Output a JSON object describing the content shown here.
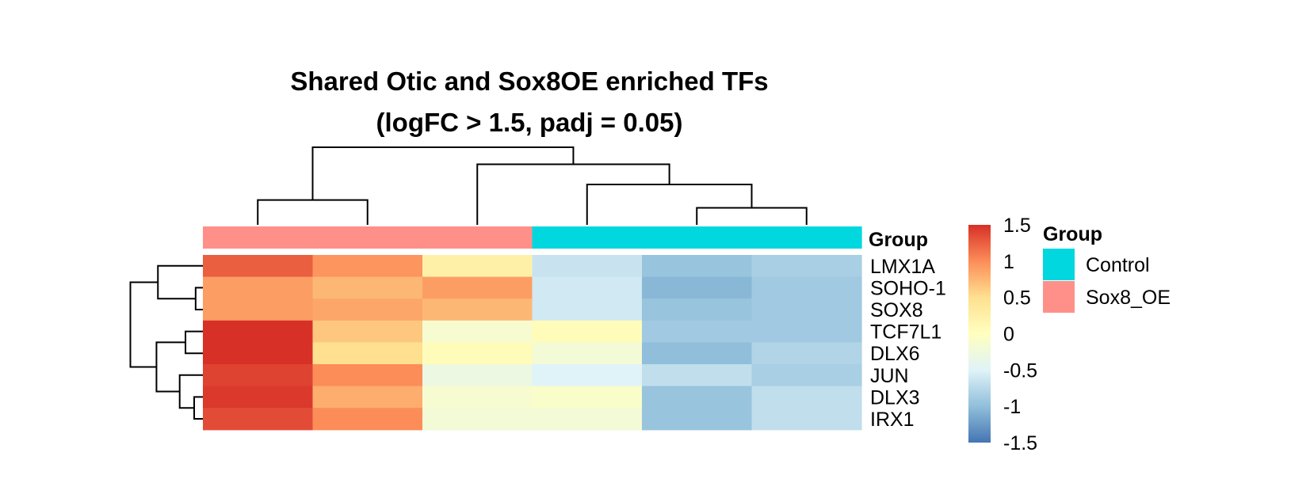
{
  "chart_data": {
    "type": "heatmap",
    "title": "Shared Otic and Sox8OE enriched TFs",
    "subtitle": "(logFC > 1.5, padj = 0.05)",
    "rows": [
      "LMX1A",
      "SOHO-1",
      "SOX8",
      "TCF7L1",
      "DLX6",
      "JUN",
      "DLX3",
      "IRX1"
    ],
    "column_groups": [
      "Sox8_OE",
      "Sox8_OE",
      "Sox8_OE",
      "Control",
      "Control",
      "Control"
    ],
    "values": [
      [
        1.25,
        0.95,
        0.25,
        -0.65,
        -0.95,
        -0.85
      ],
      [
        0.9,
        0.75,
        0.9,
        -0.6,
        -1.05,
        -0.9
      ],
      [
        0.9,
        0.85,
        0.75,
        -0.6,
        -0.95,
        -0.9
      ],
      [
        1.5,
        0.65,
        -0.15,
        0.05,
        -0.9,
        -0.9
      ],
      [
        1.5,
        0.5,
        0.05,
        -0.2,
        -1.0,
        -0.8
      ],
      [
        1.4,
        1.0,
        -0.3,
        -0.5,
        -0.7,
        -0.85
      ],
      [
        1.45,
        0.8,
        -0.15,
        -0.1,
        -0.95,
        -0.7
      ],
      [
        1.35,
        1.0,
        -0.2,
        -0.2,
        -0.95,
        -0.7
      ]
    ],
    "color_scale": {
      "min": -1.5,
      "max": 1.5,
      "ticks": [
        "1.5",
        "1",
        "0.5",
        "0",
        "-0.5",
        "-1",
        "-1.5"
      ],
      "tick_values": [
        1.5,
        1,
        0.5,
        0,
        -0.5,
        -1,
        -1.5
      ],
      "colors": [
        "#4575b4",
        "#91bfdb",
        "#e0f3f8",
        "#ffffbf",
        "#fee090",
        "#fc8d59",
        "#d73027"
      ]
    },
    "annotation": {
      "name": "Group",
      "legend_title": "Group",
      "levels": [
        {
          "name": "Control",
          "color": "#00d7df"
        },
        {
          "name": "Sox8_OE",
          "color": "#ff9089"
        }
      ]
    }
  }
}
